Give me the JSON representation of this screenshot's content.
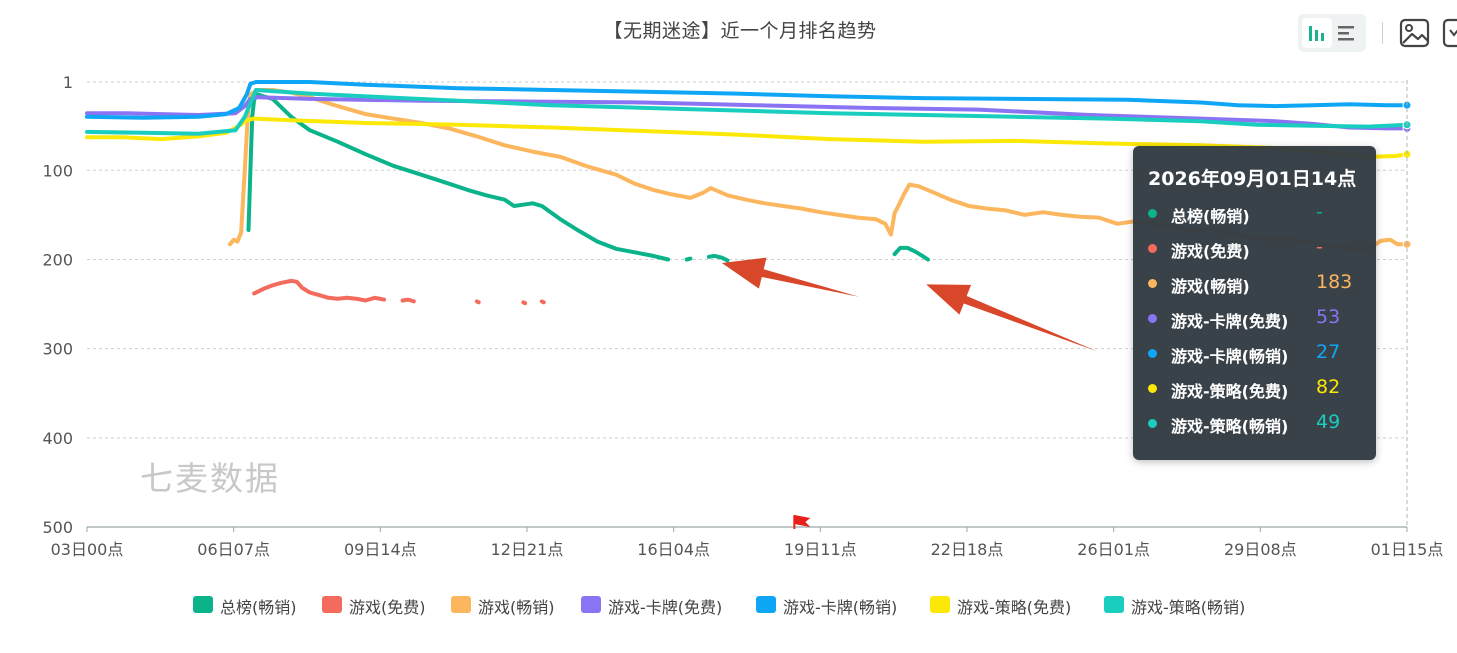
{
  "title": "【无期迷途】近一个月排名趋势",
  "watermark": "七麦数据",
  "toolbar": {
    "buttons": [
      {
        "name": "bar-chart-icon",
        "active": true
      },
      {
        "name": "list-icon",
        "active": false
      },
      {
        "name": "image-download-icon",
        "active": false
      },
      {
        "name": "export-icon",
        "active": false
      }
    ]
  },
  "tooltip": {
    "title": "2026年09月01日14点",
    "rows": [
      {
        "name": "总榜(畅销)",
        "value": "-",
        "color": "#0bb38a"
      },
      {
        "name": "游戏(免费)",
        "value": "-",
        "color": "#f26b5c"
      },
      {
        "name": "游戏(畅销)",
        "value": "183",
        "color": "#fbb65e"
      },
      {
        "name": "游戏-卡牌(免费)",
        "value": "53",
        "color": "#8b74f4"
      },
      {
        "name": "游戏-卡牌(畅销)",
        "value": "27",
        "color": "#0fa6f6"
      },
      {
        "name": "游戏-策略(免费)",
        "value": "82",
        "color": "#fbe806"
      },
      {
        "name": "游戏-策略(畅销)",
        "value": "49",
        "color": "#19cdbf"
      }
    ]
  },
  "chart_data": {
    "type": "line",
    "title": "【无期迷途】近一个月排名趋势",
    "y_inverted": true,
    "ylim": [
      1,
      500
    ],
    "yticks": [
      "1",
      "100",
      "200",
      "300",
      "400",
      "500"
    ],
    "xticks": [
      "03日00点",
      "06日07点",
      "09日14点",
      "12日21点",
      "16日04点",
      "19日11点",
      "22日18点",
      "26日01点",
      "29日08点",
      "01日15点"
    ],
    "x_range_hours": [
      0,
      711
    ],
    "grid": true,
    "legend_position": "bottom",
    "series": [
      {
        "name": "总榜(畅销)",
        "color": "#0bb38a",
        "segments": [
          [
            [
              87,
              167
            ],
            [
              88,
              100
            ],
            [
              89,
              40
            ],
            [
              90,
              21
            ],
            [
              92,
              15
            ],
            [
              95,
              17
            ],
            [
              100,
              20
            ],
            [
              110,
              40
            ],
            [
              120,
              55
            ],
            [
              135,
              68
            ],
            [
              150,
              82
            ],
            [
              165,
              95
            ],
            [
              180,
              105
            ],
            [
              195,
              115
            ],
            [
              205,
              122
            ],
            [
              215,
              128
            ],
            [
              225,
              133
            ],
            [
              230,
              140
            ],
            [
              240,
              137
            ],
            [
              245,
              140
            ],
            [
              255,
              155
            ],
            [
              265,
              168
            ],
            [
              275,
              180
            ],
            [
              285,
              188
            ],
            [
              295,
              192
            ],
            [
              305,
              196
            ],
            [
              313,
              200
            ]
          ],
          [
            [
              323,
              200
            ],
            [
              325,
              199
            ]
          ],
          [
            [
              335,
              197
            ],
            [
              338,
              196
            ],
            [
              342,
              198
            ],
            [
              345,
              201
            ]
          ],
          [
            [
              435,
              194
            ],
            [
              438,
              187
            ],
            [
              442,
              187
            ],
            [
              446,
              191
            ],
            [
              450,
              196
            ],
            [
              453,
              200
            ]
          ]
        ]
      },
      {
        "name": "游戏(免费)",
        "color": "#f26b5c",
        "segments": [
          [
            [
              90,
              238
            ],
            [
              95,
              233
            ],
            [
              100,
              229
            ],
            [
              105,
              226
            ],
            [
              110,
              224
            ],
            [
              113,
              225
            ],
            [
              116,
              232
            ],
            [
              120,
              237
            ],
            [
              125,
              240
            ],
            [
              130,
              243
            ],
            [
              135,
              244
            ],
            [
              140,
              243
            ],
            [
              145,
              244
            ],
            [
              150,
              246
            ],
            [
              155,
              243
            ],
            [
              160,
              245
            ]
          ],
          [
            [
              170,
              246
            ],
            [
              173,
              245
            ],
            [
              176,
              247
            ]
          ],
          [
            [
              210,
              247
            ],
            [
              211,
              248
            ]
          ],
          [
            [
              235,
              248
            ],
            [
              236,
              249
            ]
          ],
          [
            [
              245,
              247
            ],
            [
              246,
              248
            ]
          ]
        ]
      },
      {
        "name": "游戏(畅销)",
        "color": "#fbb65e",
        "segments": [
          [
            [
              77,
              183
            ],
            [
              79,
              178
            ],
            [
              81,
              180
            ],
            [
              83,
              170
            ],
            [
              85,
              100
            ],
            [
              86,
              60
            ],
            [
              87,
              30
            ],
            [
              88,
              15
            ],
            [
              92,
              10
            ],
            [
              100,
              10
            ],
            [
              110,
              13
            ],
            [
              120,
              18
            ],
            [
              135,
              28
            ],
            [
              150,
              37
            ],
            [
              165,
              42
            ],
            [
              180,
              47
            ],
            [
              195,
              53
            ],
            [
              210,
              62
            ],
            [
              225,
              72
            ],
            [
              240,
              79
            ],
            [
              255,
              85
            ],
            [
              270,
              96
            ],
            [
              285,
              105
            ],
            [
              295,
              115
            ],
            [
              305,
              122
            ],
            [
              315,
              127
            ],
            [
              325,
              131
            ],
            [
              332,
              125
            ],
            [
              336,
              120
            ],
            [
              345,
              128
            ],
            [
              355,
              133
            ],
            [
              365,
              137
            ],
            [
              375,
              140
            ],
            [
              385,
              143
            ],
            [
              395,
              147
            ],
            [
              405,
              150
            ],
            [
              415,
              153
            ],
            [
              425,
              155
            ],
            [
              430,
              160
            ],
            [
              433,
              172
            ],
            [
              435,
              148
            ],
            [
              437,
              140
            ],
            [
              440,
              127
            ],
            [
              443,
              116
            ],
            [
              448,
              118
            ],
            [
              455,
              124
            ],
            [
              465,
              133
            ],
            [
              475,
              140
            ],
            [
              485,
              143
            ],
            [
              495,
              145
            ],
            [
              505,
              150
            ],
            [
              515,
              147
            ],
            [
              525,
              150
            ],
            [
              535,
              152
            ],
            [
              545,
              153
            ],
            [
              555,
              160
            ],
            [
              565,
              157
            ],
            [
              575,
              160
            ],
            [
              585,
              162
            ],
            [
              595,
              168
            ],
            [
              605,
              165
            ],
            [
              615,
              170
            ],
            [
              625,
              174
            ],
            [
              635,
              178
            ],
            [
              645,
              176
            ],
            [
              655,
              180
            ],
            [
              665,
              183
            ],
            [
              675,
              186
            ],
            [
              685,
              189
            ],
            [
              692,
              186
            ],
            [
              697,
              179
            ],
            [
              702,
              178
            ],
            [
              706,
              183
            ],
            [
              711,
              183
            ]
          ]
        ]
      },
      {
        "name": "游戏-卡牌(免费)",
        "color": "#8b74f4",
        "segments": [
          [
            [
              0,
              36
            ],
            [
              20,
              36
            ],
            [
              40,
              37
            ],
            [
              60,
              38
            ],
            [
              70,
              37
            ],
            [
              80,
              36
            ],
            [
              85,
              28
            ],
            [
              88,
              20
            ],
            [
              92,
              18
            ],
            [
              120,
              20
            ],
            [
              180,
              22
            ],
            [
              240,
              23
            ],
            [
              300,
              24
            ],
            [
              360,
              27
            ],
            [
              420,
              30
            ],
            [
              480,
              32
            ],
            [
              540,
              38
            ],
            [
              600,
              42
            ],
            [
              640,
              45
            ],
            [
              660,
              48
            ],
            [
              680,
              52
            ],
            [
              700,
              53
            ],
            [
              711,
              53
            ]
          ]
        ]
      },
      {
        "name": "游戏-卡牌(畅销)",
        "color": "#0fa6f6",
        "segments": [
          [
            [
              0,
              40
            ],
            [
              30,
              41
            ],
            [
              60,
              40
            ],
            [
              75,
              37
            ],
            [
              82,
              30
            ],
            [
              86,
              15
            ],
            [
              88,
              3
            ],
            [
              91,
              1
            ],
            [
              120,
              1
            ],
            [
              150,
              4
            ],
            [
              200,
              8
            ],
            [
              250,
              10
            ],
            [
              300,
              12
            ],
            [
              350,
              14
            ],
            [
              400,
              17
            ],
            [
              450,
              19
            ],
            [
              500,
              20
            ],
            [
              560,
              21
            ],
            [
              600,
              24
            ],
            [
              620,
              27
            ],
            [
              640,
              28
            ],
            [
              660,
              27
            ],
            [
              680,
              26
            ],
            [
              700,
              27
            ],
            [
              711,
              27
            ]
          ]
        ]
      },
      {
        "name": "游戏-策略(免费)",
        "color": "#fbe806",
        "segments": [
          [
            [
              0,
              63
            ],
            [
              20,
              63
            ],
            [
              40,
              65
            ],
            [
              60,
              62
            ],
            [
              75,
              58
            ],
            [
              82,
              50
            ],
            [
              86,
              44
            ],
            [
              90,
              42
            ],
            [
              110,
              44
            ],
            [
              150,
              47
            ],
            [
              200,
              49
            ],
            [
              250,
              52
            ],
            [
              300,
              56
            ],
            [
              350,
              60
            ],
            [
              400,
              65
            ],
            [
              450,
              68
            ],
            [
              500,
              67
            ],
            [
              550,
              70
            ],
            [
              600,
              72
            ],
            [
              640,
              75
            ],
            [
              660,
              78
            ],
            [
              690,
              85
            ],
            [
              705,
              84
            ],
            [
              711,
              82
            ]
          ]
        ]
      },
      {
        "name": "游戏-策略(畅销)",
        "color": "#19cdbf",
        "segments": [
          [
            [
              0,
              57
            ],
            [
              30,
              58
            ],
            [
              60,
              59
            ],
            [
              80,
              55
            ],
            [
              85,
              40
            ],
            [
              88,
              25
            ],
            [
              91,
              10
            ],
            [
              120,
              14
            ],
            [
              160,
              18
            ],
            [
              200,
              22
            ],
            [
              250,
              27
            ],
            [
              300,
              30
            ],
            [
              350,
              33
            ],
            [
              400,
              36
            ],
            [
              450,
              38
            ],
            [
              500,
              40
            ],
            [
              550,
              42
            ],
            [
              600,
              45
            ],
            [
              630,
              49
            ],
            [
              660,
              50
            ],
            [
              690,
              51
            ],
            [
              711,
              49
            ]
          ]
        ]
      }
    ]
  },
  "legend": [
    {
      "name": "总榜(畅销)",
      "color": "#0bb38a"
    },
    {
      "name": "游戏(免费)",
      "color": "#f26b5c"
    },
    {
      "name": "游戏(畅销)",
      "color": "#fbb65e"
    },
    {
      "name": "游戏-卡牌(免费)",
      "color": "#8b74f4"
    },
    {
      "name": "游戏-卡牌(畅销)",
      "color": "#0fa6f6"
    },
    {
      "name": "游戏-策略(免费)",
      "color": "#fbe806"
    },
    {
      "name": "游戏-策略(畅销)",
      "color": "#19cdbf"
    }
  ],
  "annotations": {
    "arrow_color": "#d9472b",
    "flag_color": "#e8201b",
    "flag_marker_hours": 381,
    "arrows": [
      {
        "tip_hours": 342,
        "tip_rank": 204,
        "tail_hours": 416,
        "tail_rank": 242
      },
      {
        "tip_hours": 452,
        "tip_rank": 228,
        "tail_hours": 544,
        "tail_rank": 303
      }
    ]
  }
}
